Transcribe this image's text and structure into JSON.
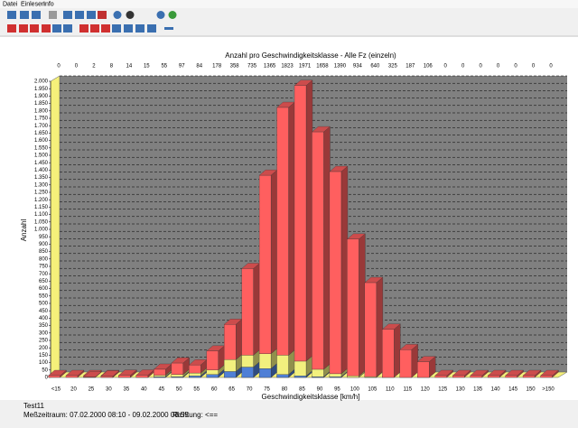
{
  "menu": [
    "Datei",
    "Einlesen",
    "Info"
  ],
  "chart_data": {
    "type": "bar",
    "stacked": true,
    "title": "Anzahl pro Geschwindigkeitsklasse - Alle Fz (einzeln)",
    "x_label": "Geschwindigkeitsklasse [km/h]",
    "y_label": "Anzahl",
    "categories": [
      "<15",
      "20",
      "25",
      "30",
      "35",
      "40",
      "45",
      "50",
      "55",
      "60",
      "65",
      "70",
      "75",
      "80",
      "85",
      "90",
      "95",
      "100",
      "105",
      "110",
      "115",
      "120",
      "125",
      "130",
      "135",
      "140",
      "145",
      "150",
      ">150"
    ],
    "totals": [
      0,
      0,
      2,
      8,
      14,
      15,
      55,
      97,
      84,
      178,
      358,
      735,
      1365,
      1823,
      1971,
      1658,
      1390,
      934,
      640,
      325,
      187,
      106,
      0,
      0,
      0,
      0,
      0,
      0,
      0
    ],
    "series": [
      {
        "color": "#4f7fd6",
        "values": [
          0,
          0,
          0,
          0,
          0,
          0,
          5,
          5,
          10,
          20,
          40,
          70,
          60,
          20,
          10,
          5,
          5,
          0,
          0,
          0,
          0,
          0,
          0,
          0,
          0,
          0,
          0,
          0,
          0
        ]
      },
      {
        "color": "#f2f07e",
        "values": [
          0,
          0,
          0,
          0,
          0,
          0,
          10,
          15,
          20,
          30,
          80,
          80,
          100,
          130,
          100,
          50,
          20,
          10,
          5,
          0,
          0,
          0,
          0,
          0,
          0,
          0,
          0,
          0,
          0
        ]
      },
      {
        "color": "#ff5f5f",
        "values": [
          0,
          0,
          2,
          8,
          14,
          15,
          40,
          77,
          54,
          128,
          238,
          585,
          1205,
          1673,
          1861,
          1603,
          1365,
          924,
          635,
          325,
          187,
          106,
          0,
          0,
          0,
          0,
          0,
          0,
          0
        ]
      }
    ],
    "ylim": [
      0,
      2000
    ],
    "yticks": [
      0,
      50,
      100,
      150,
      200,
      250,
      300,
      350,
      400,
      450,
      500,
      550,
      600,
      650,
      700,
      750,
      800,
      850,
      900,
      950,
      {
        "value": 1000,
        "label": "1.000"
      },
      {
        "value": 1050,
        "label": "1.050"
      },
      {
        "value": 1100,
        "label": "1.100"
      },
      {
        "value": 1150,
        "label": "1.150"
      },
      {
        "value": 1200,
        "label": "1.200"
      },
      {
        "value": 1250,
        "label": "1.250"
      },
      {
        "value": 1300,
        "label": "1.300"
      },
      {
        "value": 1350,
        "label": "1.350"
      },
      {
        "value": 1400,
        "label": "1.400"
      },
      {
        "value": 1450,
        "label": "1.450"
      },
      {
        "value": 1500,
        "label": "1.500"
      },
      {
        "value": 1550,
        "label": "1.550"
      },
      {
        "value": 1600,
        "label": "1.600"
      },
      {
        "value": 1650,
        "label": "1.650"
      },
      {
        "value": 1700,
        "label": "1.700"
      },
      {
        "value": 1750,
        "label": "1.750"
      },
      {
        "value": 1800,
        "label": "1.800"
      },
      {
        "value": 1850,
        "label": "1.850"
      },
      {
        "value": 1900,
        "label": "1.900"
      },
      {
        "value": 1950,
        "label": "1.950"
      },
      {
        "value": 2000,
        "label": "2.000"
      }
    ],
    "grid": true
  },
  "footer": {
    "test": "Test11",
    "period": "Meßzeitraum:  07.02.2000  08:10  -  09.02.2000  08:55",
    "direction": "Richtung:  <=="
  }
}
